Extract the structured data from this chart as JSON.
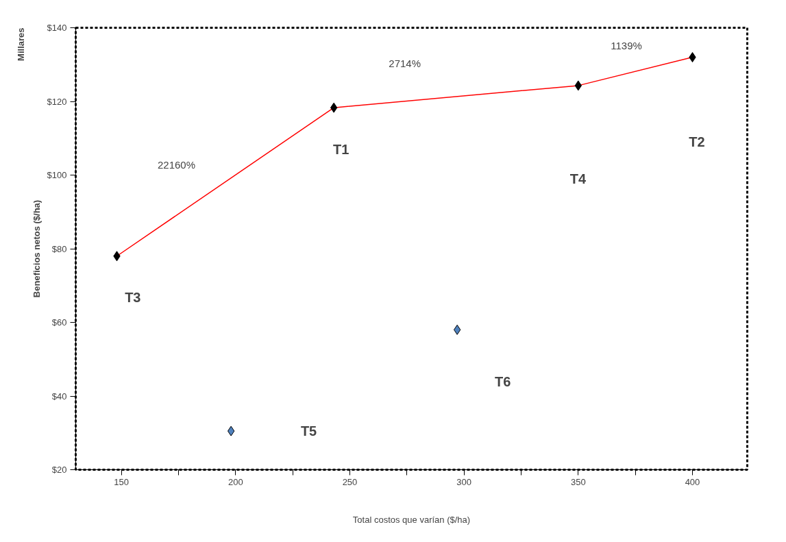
{
  "chart_data": {
    "type": "scatter",
    "xlabel": "Total costos que varían ($/ha)",
    "ylabel": "Beneficios netos ($/ha)",
    "xlim": [
      130,
      424
    ],
    "xticks": [
      150,
      200,
      250,
      300,
      350,
      400,
      {
        "value": 175,
        "label": null
      },
      {
        "value": 225,
        "label": null
      },
      {
        "value": 275,
        "label": null
      },
      {
        "value": 325,
        "label": null
      },
      {
        "value": 375,
        "label": null
      }
    ],
    "ylim": [
      20,
      140
    ],
    "yticks": [
      {
        "value": 20,
        "label": "$20"
      },
      {
        "value": 40,
        "label": "$40"
      },
      {
        "value": 60,
        "label": "$60"
      },
      {
        "value": 80,
        "label": "$80"
      },
      {
        "value": 100,
        "label": "$100"
      },
      {
        "value": 120,
        "label": "$120"
      },
      {
        "value": 140,
        "label": "$140"
      }
    ],
    "grid": false,
    "marker": "diamond",
    "series": [
      {
        "type": "line",
        "color": "#ff0000",
        "x": [
          148,
          243,
          350,
          400
        ],
        "values": [
          78,
          118.3,
          124.3,
          132
        ],
        "marker": "none"
      },
      {
        "color": "#000000",
        "x": [
          148,
          243,
          350,
          400
        ],
        "values": [
          78,
          118.3,
          124.3,
          132
        ]
      },
      {
        "color": "#4f81bd",
        "x": [
          198,
          297
        ],
        "values": [
          30.5,
          58
        ]
      }
    ],
    "annotations": [
      "Millares",
      "22160%",
      "2714%",
      "1139%",
      "T3",
      "T1",
      "T4",
      "T2",
      "T5",
      "T6"
    ]
  }
}
